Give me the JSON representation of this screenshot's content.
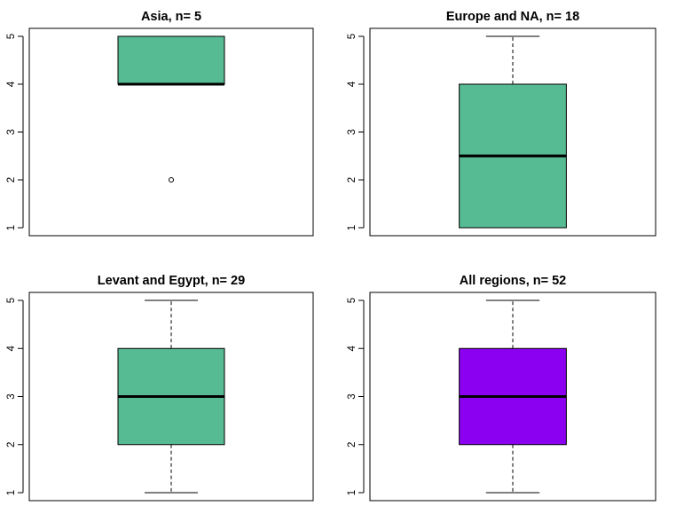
{
  "chart_data": [
    {
      "type": "boxplot",
      "title": "Asia, n= 5",
      "fill_color": "#56BA93",
      "ylim": [
        1,
        5
      ],
      "yticks": [
        1,
        2,
        3,
        4,
        5
      ],
      "box": {
        "whisker_low": 4,
        "q1": 4,
        "median": 4,
        "q3": 5,
        "whisker_high": 5
      },
      "outliers": [
        2
      ]
    },
    {
      "type": "boxplot",
      "title": "Europe and NA, n= 18",
      "fill_color": "#56BA93",
      "ylim": [
        1,
        5
      ],
      "yticks": [
        1,
        2,
        3,
        4,
        5
      ],
      "box": {
        "whisker_low": 1,
        "q1": 1,
        "median": 2.5,
        "q3": 4,
        "whisker_high": 5
      },
      "outliers": []
    },
    {
      "type": "boxplot",
      "title": "Levant and Egypt, n= 29",
      "fill_color": "#56BA93",
      "ylim": [
        1,
        5
      ],
      "yticks": [
        1,
        2,
        3,
        4,
        5
      ],
      "box": {
        "whisker_low": 1,
        "q1": 2,
        "median": 3,
        "q3": 4,
        "whisker_high": 5
      },
      "outliers": []
    },
    {
      "type": "boxplot",
      "title": "All regions, n= 52",
      "fill_color": "#8B00F0",
      "ylim": [
        1,
        5
      ],
      "yticks": [
        1,
        2,
        3,
        4,
        5
      ],
      "box": {
        "whisker_low": 1,
        "q1": 2,
        "median": 3,
        "q3": 4,
        "whisker_high": 5
      },
      "outliers": []
    }
  ]
}
